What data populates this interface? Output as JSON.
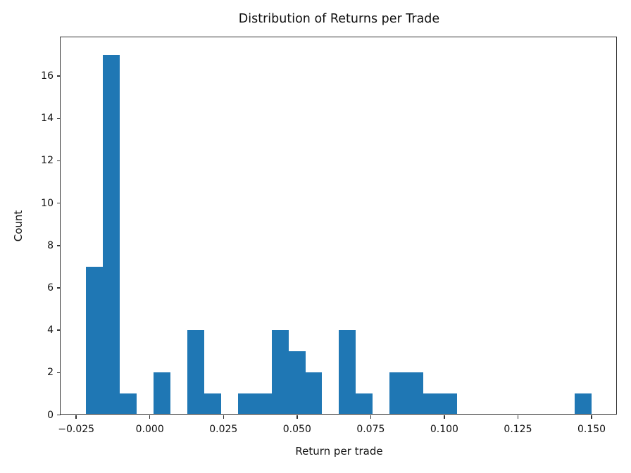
{
  "chart_data": {
    "type": "bar",
    "subtype": "histogram",
    "title": "Distribution of Returns per Trade",
    "xlabel": "Return per trade",
    "ylabel": "Count",
    "bar_color": "#1f77b4",
    "n_bins": 30,
    "bin_edges": [
      -0.0216,
      -0.01588,
      -0.01016,
      -0.00443,
      0.00129,
      0.00701,
      0.01274,
      0.01846,
      0.02418,
      0.02991,
      0.03563,
      0.04135,
      0.04708,
      0.0528,
      0.05852,
      0.06425,
      0.06997,
      0.07569,
      0.08142,
      0.08714,
      0.09286,
      0.09859,
      0.10431,
      0.11003,
      0.11576,
      0.12148,
      0.1272,
      0.13293,
      0.13865,
      0.14437,
      0.1501
    ],
    "counts": [
      7,
      17,
      1,
      0,
      2,
      0,
      4,
      1,
      0,
      1,
      1,
      4,
      3,
      2,
      0,
      4,
      1,
      0,
      2,
      2,
      1,
      1,
      0,
      0,
      0,
      0,
      0,
      0,
      0,
      1
    ],
    "total_count": 55,
    "x_ticks": [
      -0.025,
      0.0,
      0.025,
      0.05,
      0.075,
      0.1,
      0.125,
      0.15
    ],
    "x_tick_labels": [
      "−0.025",
      "0.000",
      "0.025",
      "0.050",
      "0.075",
      "0.100",
      "0.125",
      "0.150"
    ],
    "y_ticks": [
      0,
      2,
      4,
      6,
      8,
      10,
      12,
      14,
      16
    ],
    "y_tick_labels": [
      "0",
      "2",
      "4",
      "6",
      "8",
      "10",
      "12",
      "14",
      "16"
    ],
    "xlim": [
      -0.0303,
      0.1586
    ],
    "ylim": [
      0,
      17.85
    ],
    "grid": false,
    "legend_position": "none"
  }
}
